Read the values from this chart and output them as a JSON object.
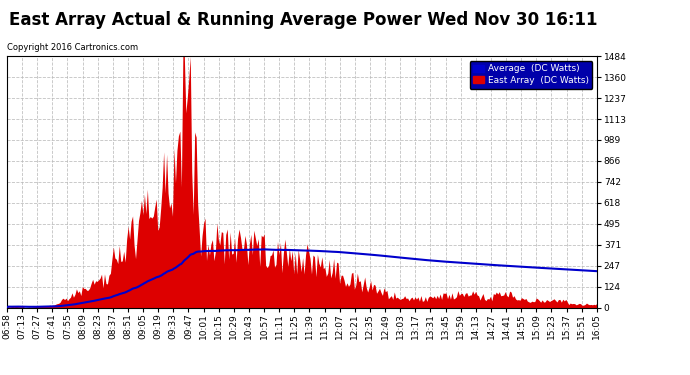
{
  "title": "East Array Actual & Running Average Power Wed Nov 30 16:11",
  "copyright": "Copyright 2016 Cartronics.com",
  "legend_avg": "Average  (DC Watts)",
  "legend_east": "East Array  (DC Watts)",
  "ymin": 0.0,
  "ymax": 1484.1,
  "yticks": [
    0.0,
    123.7,
    247.4,
    371.0,
    494.7,
    618.4,
    742.1,
    865.7,
    989.4,
    1113.1,
    1236.8,
    1360.4,
    1484.1
  ],
  "color_fill": "#dd0000",
  "color_line": "#0000cc",
  "color_bg": "#ffffff",
  "color_grid": "#bbbbbb",
  "title_fontsize": 12,
  "tick_fontsize": 6.5,
  "xtick_labels": [
    "06:58",
    "07:13",
    "07:27",
    "07:41",
    "07:55",
    "08:09",
    "08:23",
    "08:37",
    "08:51",
    "09:05",
    "09:19",
    "09:33",
    "09:47",
    "10:01",
    "10:15",
    "10:29",
    "10:43",
    "10:57",
    "11:11",
    "11:25",
    "11:39",
    "11:53",
    "12:07",
    "12:21",
    "12:35",
    "12:49",
    "13:03",
    "13:17",
    "13:31",
    "13:45",
    "13:59",
    "14:13",
    "14:27",
    "14:41",
    "14:55",
    "15:09",
    "15:23",
    "15:37",
    "15:51",
    "16:05"
  ]
}
